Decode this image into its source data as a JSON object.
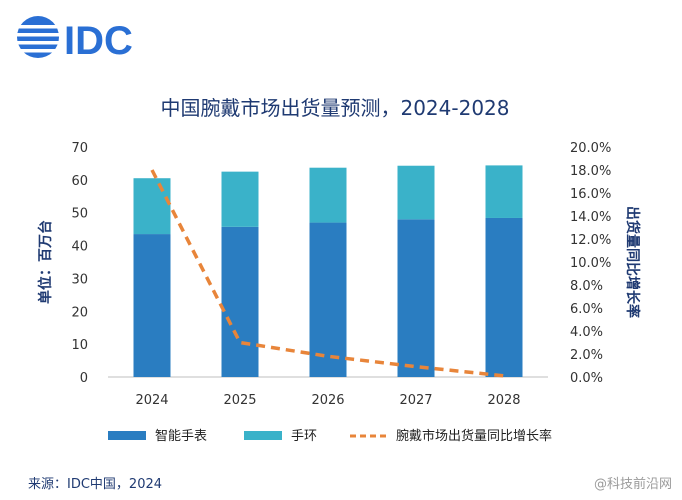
{
  "logo": {
    "text": "IDC"
  },
  "chart_data": {
    "type": "bar",
    "title": "中国腕戴市场出货量预测，2024-2028",
    "categories": [
      "2024",
      "2025",
      "2026",
      "2027",
      "2028"
    ],
    "series": [
      {
        "name": "智能手表",
        "type": "bar",
        "stack": "units",
        "values": [
          43.5,
          45.7,
          47.0,
          48.0,
          48.4
        ],
        "color": "#2a7dc1"
      },
      {
        "name": "手环",
        "type": "bar",
        "stack": "units",
        "values": [
          17.0,
          16.8,
          16.7,
          16.3,
          16.0
        ],
        "color": "#3ab2c9"
      },
      {
        "name": "腕戴市场出货量同比增长率",
        "type": "line",
        "axis": "right",
        "values": [
          18.0,
          3.0,
          1.8,
          0.9,
          0.1
        ],
        "color": "#e8853a",
        "style": "dashed"
      }
    ],
    "ylabel": "单位：百万台",
    "y2label": "出货量同比增长率",
    "ylim": [
      0,
      70
    ],
    "yticks": [
      "0",
      "10",
      "20",
      "30",
      "40",
      "50",
      "60",
      "70"
    ],
    "y2lim": [
      0,
      20
    ],
    "y2ticks": [
      "0.0%",
      "2.0%",
      "4.0%",
      "6.0%",
      "8.0%",
      "10.0%",
      "12.0%",
      "14.0%",
      "16.0%",
      "18.0%",
      "20.0%"
    ],
    "grid": false,
    "legend": "bottom"
  },
  "source": "来源：IDC中国，2024",
  "watermark": "@科技前沿网",
  "colors": {
    "title": "#1f3a72",
    "logo": "#2a6fd4"
  }
}
